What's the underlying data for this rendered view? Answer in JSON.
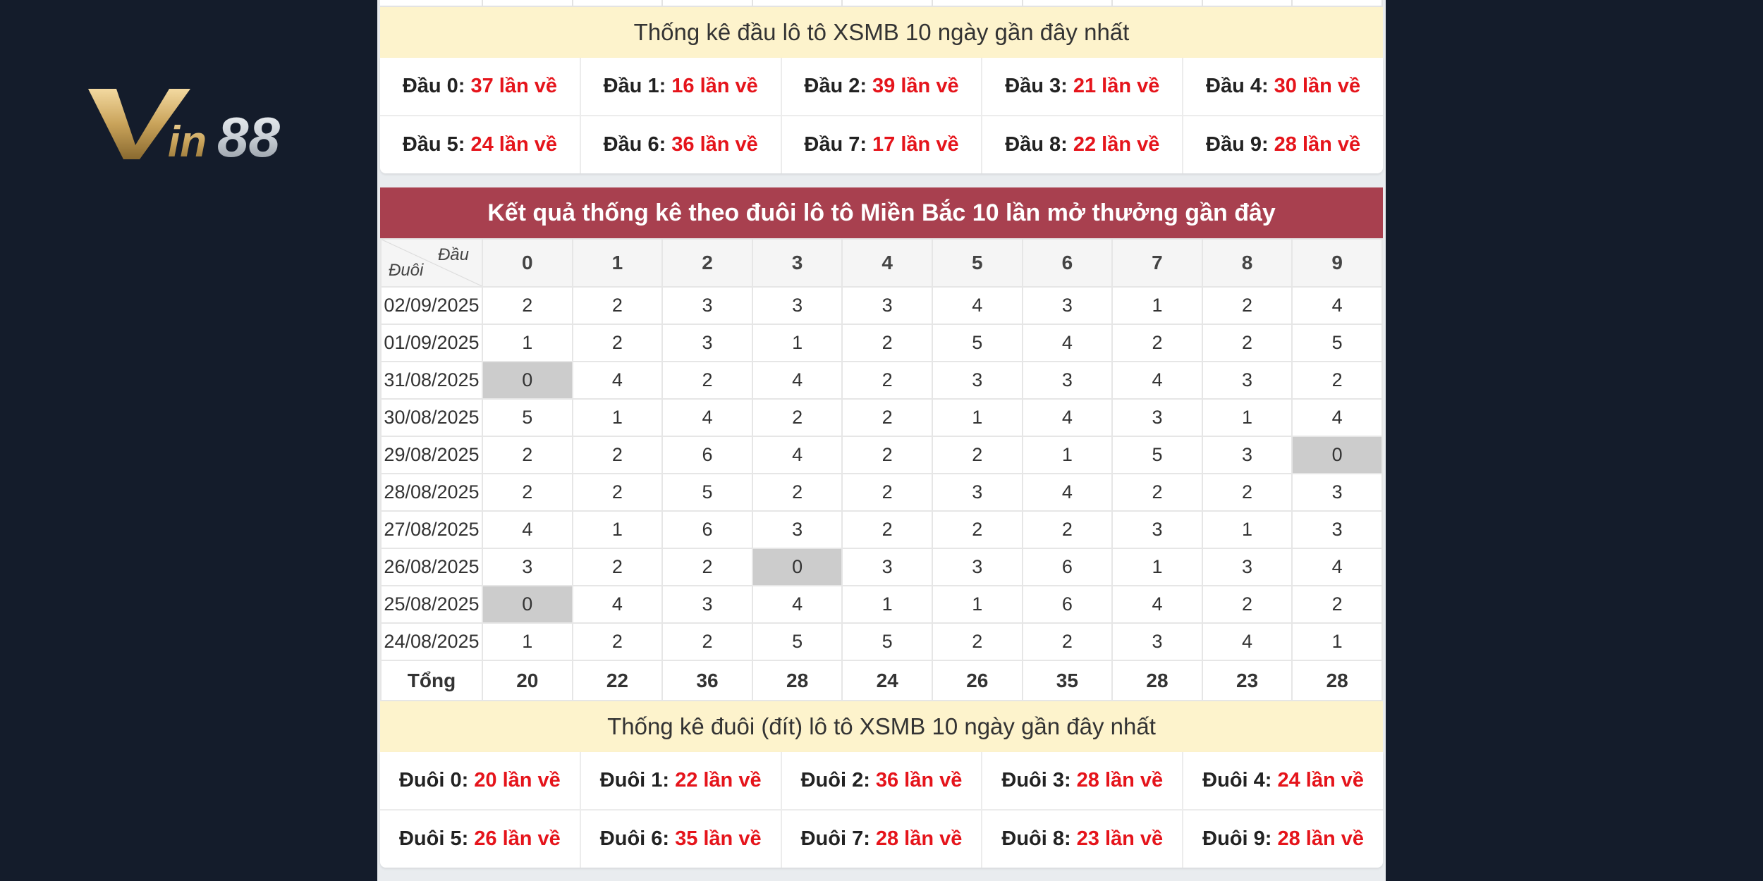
{
  "logo": {
    "text": "Vin88"
  },
  "dau_section": {
    "title": "Thống kê đầu lô tô XSMB 10 ngày gần đây nhất",
    "items": [
      {
        "label": "Đầu 0:",
        "value": "37 lần về"
      },
      {
        "label": "Đầu 1:",
        "value": "16 lần về"
      },
      {
        "label": "Đầu 2:",
        "value": "39 lần về"
      },
      {
        "label": "Đầu 3:",
        "value": "21 lần về"
      },
      {
        "label": "Đầu 4:",
        "value": "30 lần về"
      },
      {
        "label": "Đầu 5:",
        "value": "24 lần về"
      },
      {
        "label": "Đầu 6:",
        "value": "36 lần về"
      },
      {
        "label": "Đầu 7:",
        "value": "17 lần về"
      },
      {
        "label": "Đầu 8:",
        "value": "22 lần về"
      },
      {
        "label": "Đầu 9:",
        "value": "28 lần về"
      }
    ]
  },
  "duoi_table": {
    "title": "Kết quả thống kê theo đuôi lô tô Miền Bắc 10 lần mở thưởng gần đây",
    "corner_top": "Đầu",
    "corner_bottom": "Đuôi",
    "columns": [
      "0",
      "1",
      "2",
      "3",
      "4",
      "5",
      "6",
      "7",
      "8",
      "9"
    ],
    "rows": [
      {
        "date": "02/09/2025",
        "values": [
          "2",
          "2",
          "3",
          "3",
          "3",
          "4",
          "3",
          "1",
          "2",
          "4"
        ]
      },
      {
        "date": "01/09/2025",
        "values": [
          "1",
          "2",
          "3",
          "1",
          "2",
          "5",
          "4",
          "2",
          "2",
          "5"
        ]
      },
      {
        "date": "31/08/2025",
        "values": [
          "0",
          "4",
          "2",
          "4",
          "2",
          "3",
          "3",
          "4",
          "3",
          "2"
        ]
      },
      {
        "date": "30/08/2025",
        "values": [
          "5",
          "1",
          "4",
          "2",
          "2",
          "1",
          "4",
          "3",
          "1",
          "4"
        ]
      },
      {
        "date": "29/08/2025",
        "values": [
          "2",
          "2",
          "6",
          "4",
          "2",
          "2",
          "1",
          "5",
          "3",
          "0"
        ]
      },
      {
        "date": "28/08/2025",
        "values": [
          "2",
          "2",
          "5",
          "2",
          "2",
          "3",
          "4",
          "2",
          "2",
          "3"
        ]
      },
      {
        "date": "27/08/2025",
        "values": [
          "4",
          "1",
          "6",
          "3",
          "2",
          "2",
          "2",
          "3",
          "1",
          "3"
        ]
      },
      {
        "date": "26/08/2025",
        "values": [
          "3",
          "2",
          "2",
          "0",
          "3",
          "3",
          "6",
          "1",
          "3",
          "4"
        ]
      },
      {
        "date": "25/08/2025",
        "values": [
          "0",
          "4",
          "3",
          "4",
          "1",
          "1",
          "6",
          "4",
          "2",
          "2"
        ]
      },
      {
        "date": "24/08/2025",
        "values": [
          "1",
          "2",
          "2",
          "5",
          "5",
          "2",
          "2",
          "3",
          "4",
          "1"
        ]
      }
    ],
    "total_label": "Tổng",
    "totals": [
      "20",
      "22",
      "36",
      "28",
      "24",
      "26",
      "35",
      "28",
      "23",
      "28"
    ]
  },
  "duoi_section": {
    "title": "Thống kê đuôi (đít) lô tô XSMB 10 ngày gần đây nhất",
    "items": [
      {
        "label": "Đuôi 0:",
        "value": "20 lần về"
      },
      {
        "label": "Đuôi 1:",
        "value": "22 lần về"
      },
      {
        "label": "Đuôi 2:",
        "value": "36 lần về"
      },
      {
        "label": "Đuôi 3:",
        "value": "28 lần về"
      },
      {
        "label": "Đuôi 4:",
        "value": "24 lần về"
      },
      {
        "label": "Đuôi 5:",
        "value": "26 lần về"
      },
      {
        "label": "Đuôi 6:",
        "value": "35 lần về"
      },
      {
        "label": "Đuôi 7:",
        "value": "28 lần về"
      },
      {
        "label": "Đuôi 8:",
        "value": "23 lần về"
      },
      {
        "label": "Đuôi 9:",
        "value": "28 lần về"
      }
    ]
  }
}
